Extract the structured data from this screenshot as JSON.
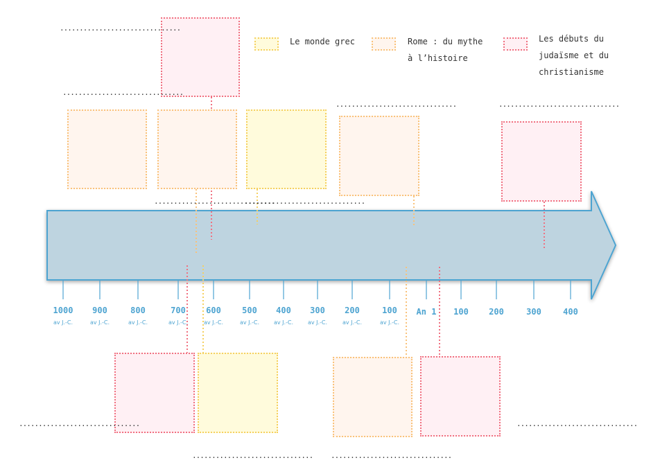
{
  "colors": {
    "grec": {
      "fill": "#fffbdc",
      "border": "#f5d060"
    },
    "rome": {
      "fill": "#fff5ee",
      "border": "#f9c27a"
    },
    "judaisme": {
      "fill": "#fff0f4",
      "border": "#f07080"
    },
    "arrow": {
      "fill": "#bed4e0",
      "border": "#4ea4d1"
    },
    "tick": "#4ea4d1"
  },
  "legend": [
    {
      "theme": "grec",
      "label": "Le monde grec"
    },
    {
      "theme": "rome",
      "label": "Rome : du mythe\nà l’histoire"
    },
    {
      "theme": "judaisme",
      "label": "Les débuts du\njudaïsme et du\nchristianisme"
    }
  ],
  "timeline": {
    "ticks": [
      {
        "year": "1000",
        "era": "av J.-C."
      },
      {
        "year": "900",
        "era": "av J.-C."
      },
      {
        "year": "800",
        "era": "av J.-C."
      },
      {
        "year": "700",
        "era": "av J.-C."
      },
      {
        "year": "600",
        "era": "av J.-C."
      },
      {
        "year": "500",
        "era": "av J.-C."
      },
      {
        "year": "400",
        "era": "av J.-C."
      },
      {
        "year": "300",
        "era": "av J.-C."
      },
      {
        "year": "200",
        "era": "av J.-C."
      },
      {
        "year": "100",
        "era": "av J.-C."
      },
      {
        "year": "An 1",
        "era": ""
      },
      {
        "year": "100",
        "era": ""
      },
      {
        "year": "200",
        "era": ""
      },
      {
        "year": "300",
        "era": ""
      },
      {
        "year": "400",
        "era": ""
      }
    ]
  },
  "placeholder": "..............................."
}
